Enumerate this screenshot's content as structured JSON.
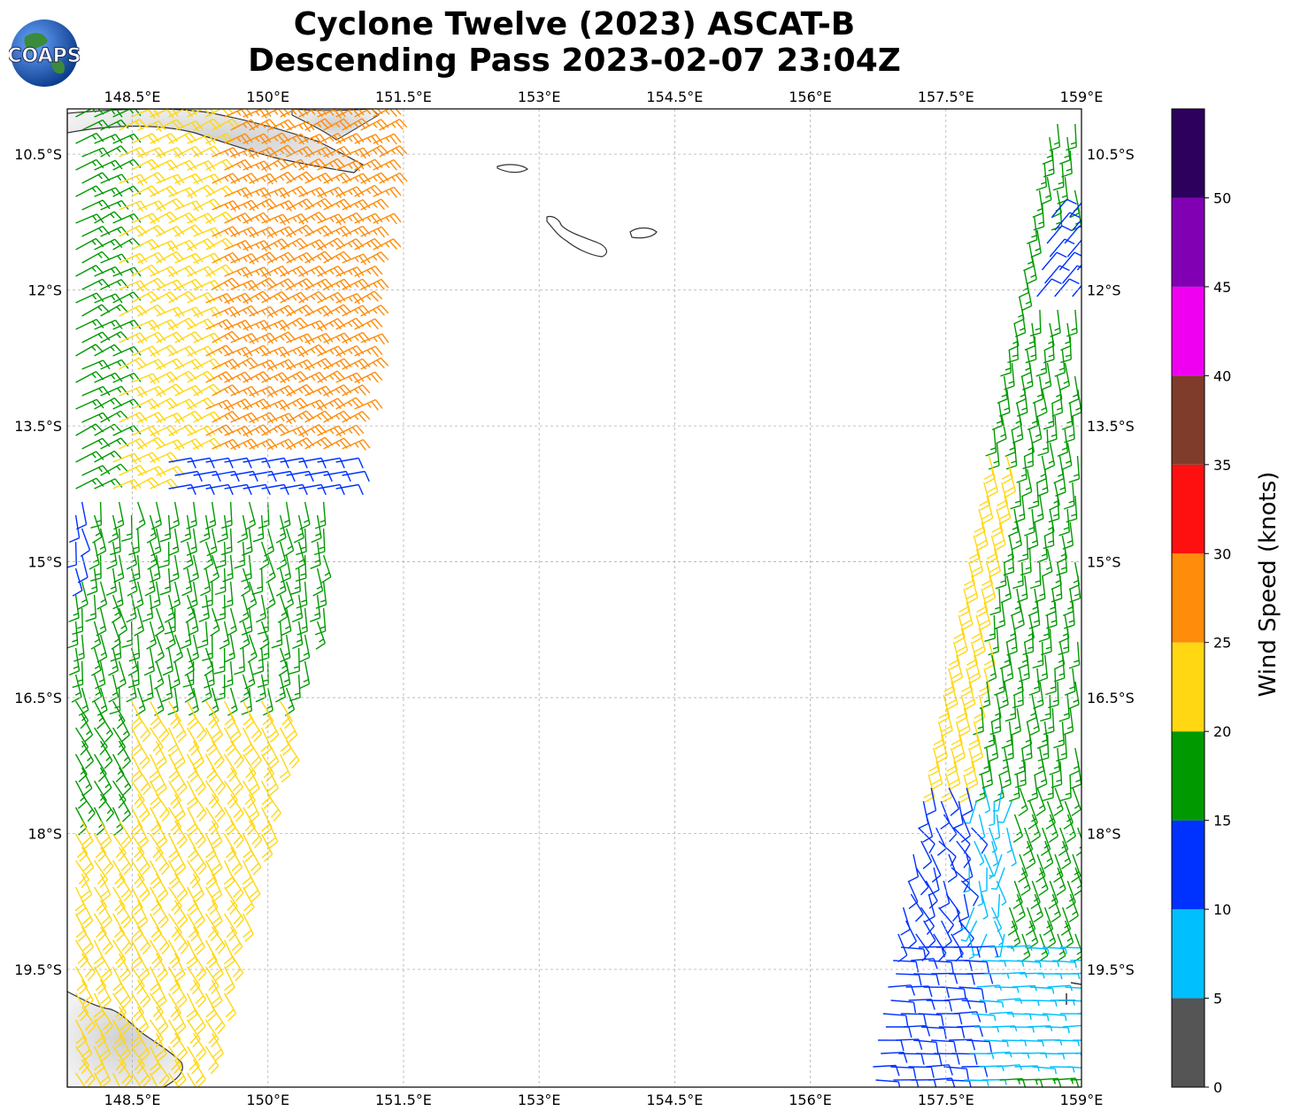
{
  "title": {
    "line1": "Cyclone Twelve (2023) ASCAT-B",
    "line2": "Descending Pass 2023-02-07 23:04Z"
  },
  "logo": {
    "text": "COAPS",
    "icon": "globe-icon"
  },
  "map": {
    "lon_ticks": [
      {
        "value": 148.5,
        "label": "148.5°E"
      },
      {
        "value": 150.0,
        "label": "150°E"
      },
      {
        "value": 151.5,
        "label": "151.5°E"
      },
      {
        "value": 153.0,
        "label": "153°E"
      },
      {
        "value": 154.5,
        "label": "154.5°E"
      },
      {
        "value": 156.0,
        "label": "156°E"
      },
      {
        "value": 157.5,
        "label": "157.5°E"
      },
      {
        "value": 159.0,
        "label": "159°E"
      }
    ],
    "lat_ticks": [
      {
        "value": -10.5,
        "label": "10.5°S"
      },
      {
        "value": -12.0,
        "label": "12°S"
      },
      {
        "value": -13.5,
        "label": "13.5°S"
      },
      {
        "value": -15.0,
        "label": "15°S"
      },
      {
        "value": -16.5,
        "label": "16.5°S"
      },
      {
        "value": -18.0,
        "label": "18°S"
      },
      {
        "value": -19.5,
        "label": "19.5°S"
      }
    ],
    "extent": {
      "lon_min": 147.78,
      "lon_max": 159.0,
      "lat_min": -20.8,
      "lat_max": -10.0
    },
    "gridlines": true
  },
  "colorbar": {
    "label": "Wind Speed (knots)",
    "ticks": [
      "0",
      "5",
      "10",
      "15",
      "20",
      "25",
      "30",
      "35",
      "40",
      "45",
      "50"
    ],
    "colors": [
      "#555555",
      "#00bfff",
      "#0032ff",
      "#009900",
      "#ffd712",
      "#ff8c0a",
      "#ff1010",
      "#7f3c2a",
      "#f000f0",
      "#8200b4",
      "#2e005e"
    ]
  }
}
